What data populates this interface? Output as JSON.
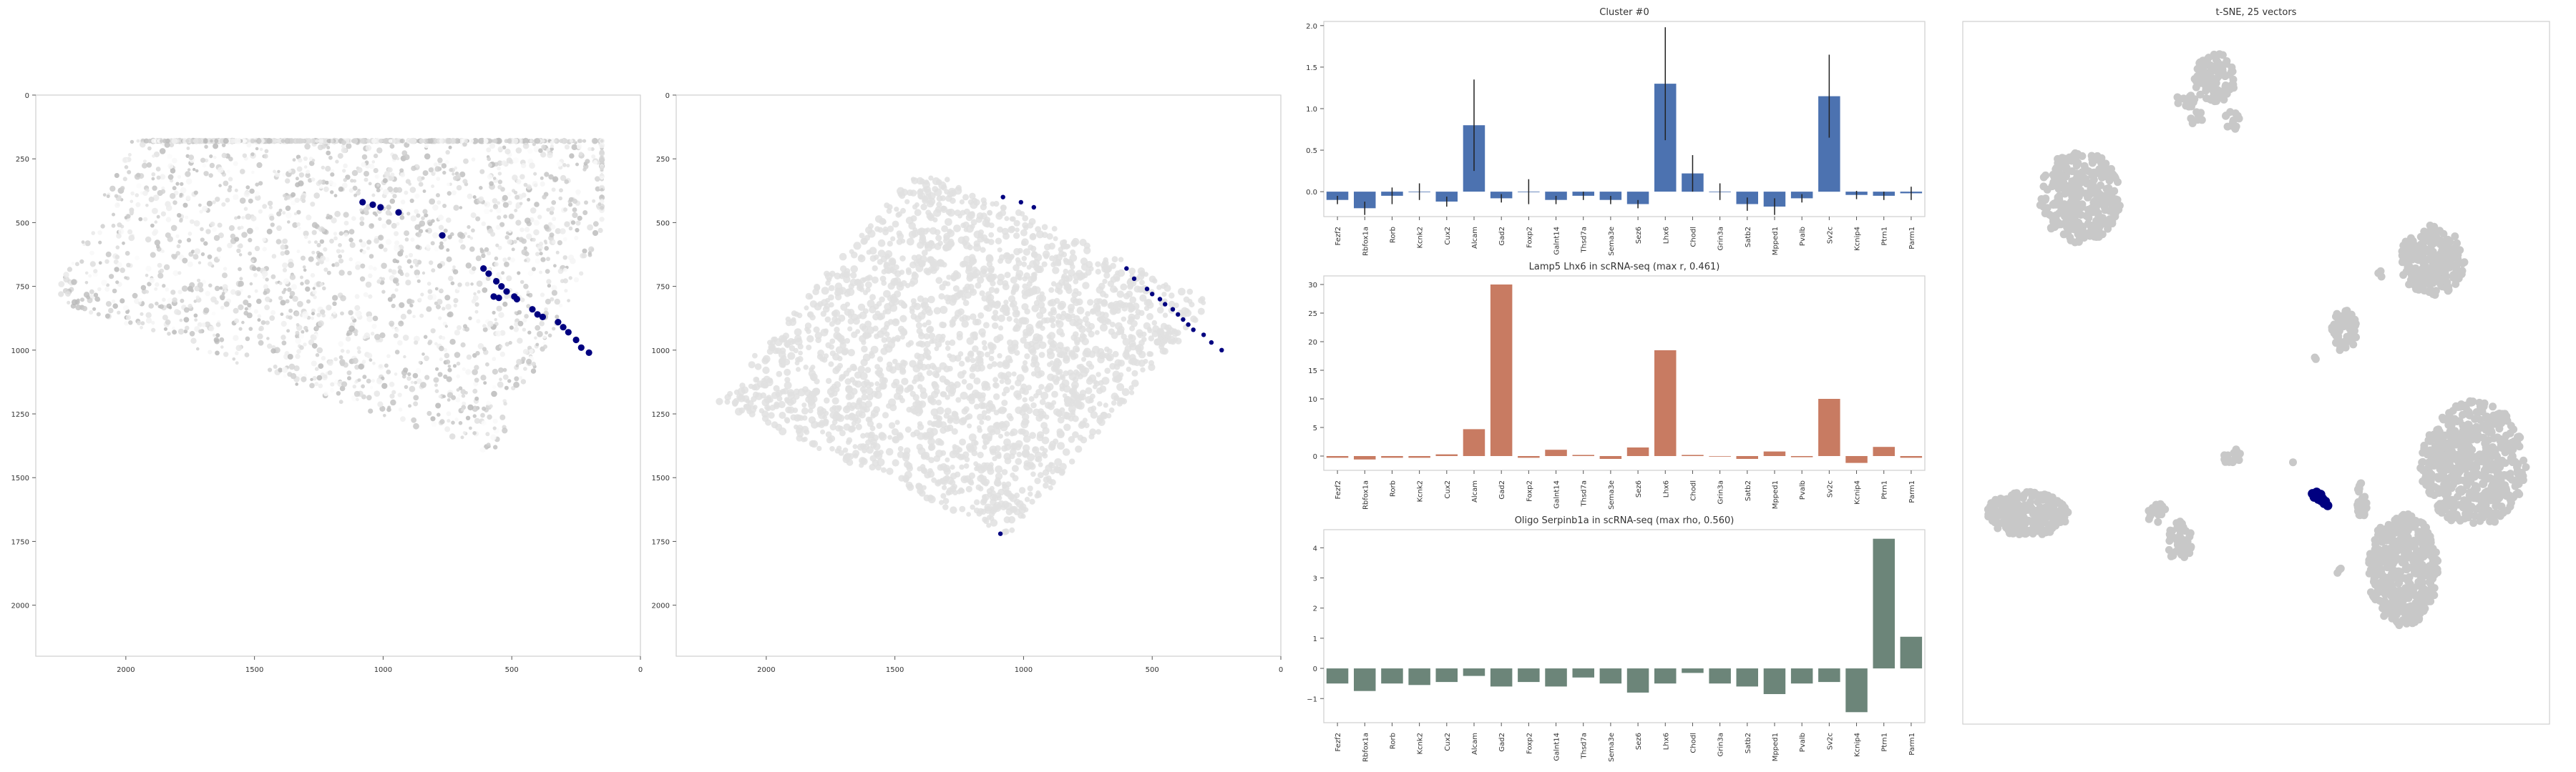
{
  "colors": {
    "highlight": "#000080",
    "scatter_gray": "#c8c8c8",
    "bar_blue": "#4c72b0",
    "bar_orange": "#c87b62",
    "bar_green": "#6c8579",
    "error_bar": "#222222"
  },
  "chart_data": [
    {
      "id": "spatial_1",
      "type": "scatter",
      "title": "",
      "xlim": [
        2350,
        0
      ],
      "ylim": [
        2200,
        0
      ],
      "x_ticks": [
        2000,
        1500,
        1000,
        500,
        0
      ],
      "y_ticks": [
        0,
        250,
        500,
        750,
        1000,
        1250,
        1500,
        1750,
        2000
      ],
      "x_tick_labels": [
        "2000",
        "1500",
        "1000",
        "500",
        "0"
      ],
      "y_tick_labels": [
        "0",
        "250",
        "500",
        "750",
        "1000",
        "1250",
        "1500",
        "1750",
        "2000"
      ],
      "background": "grayscale intensity of all cells",
      "highlighted_points": [
        [
          1080,
          420
        ],
        [
          1040,
          430
        ],
        [
          1010,
          440
        ],
        [
          940,
          460
        ],
        [
          770,
          550
        ],
        [
          610,
          680
        ],
        [
          590,
          700
        ],
        [
          560,
          730
        ],
        [
          540,
          750
        ],
        [
          520,
          770
        ],
        [
          490,
          790
        ],
        [
          480,
          800
        ],
        [
          570,
          790
        ],
        [
          550,
          795
        ],
        [
          420,
          840
        ],
        [
          400,
          860
        ],
        [
          380,
          870
        ],
        [
          320,
          890
        ],
        [
          300,
          910
        ],
        [
          280,
          930
        ],
        [
          250,
          960
        ],
        [
          230,
          990
        ],
        [
          200,
          1010
        ]
      ]
    },
    {
      "id": "spatial_2",
      "type": "scatter",
      "title": "",
      "xlim": [
        2350,
        0
      ],
      "ylim": [
        2200,
        0
      ],
      "x_ticks": [
        2000,
        1500,
        1000,
        500,
        0
      ],
      "y_ticks": [
        0,
        250,
        500,
        750,
        1000,
        1250,
        1500,
        1750,
        2000
      ],
      "x_tick_labels": [
        "2000",
        "1500",
        "1000",
        "500",
        "0"
      ],
      "y_tick_labels": [
        "0",
        "250",
        "500",
        "750",
        "1000",
        "1250",
        "1500",
        "1750",
        "2000"
      ],
      "highlighted_points": [
        [
          1080,
          400
        ],
        [
          1010,
          420
        ],
        [
          960,
          440
        ],
        [
          600,
          680
        ],
        [
          570,
          720
        ],
        [
          520,
          760
        ],
        [
          500,
          780
        ],
        [
          470,
          800
        ],
        [
          450,
          820
        ],
        [
          420,
          840
        ],
        [
          400,
          860
        ],
        [
          380,
          880
        ],
        [
          360,
          900
        ],
        [
          340,
          920
        ],
        [
          300,
          940
        ],
        [
          270,
          970
        ],
        [
          230,
          1000
        ],
        [
          1090,
          1720
        ]
      ]
    },
    {
      "id": "bar_cluster",
      "type": "bar",
      "title": "Cluster #0",
      "categories": [
        "Fezf2",
        "Rbfox1a",
        "Rorb",
        "Kcnk2",
        "Cux2",
        "Alcam",
        "Gad2",
        "Foxp2",
        "Galnt14",
        "Thsd7a",
        "Sema3e",
        "Sez6",
        "Lhx6",
        "Chodl",
        "Grin3a",
        "Satb2",
        "Mpped1",
        "Pvalb",
        "Sv2c",
        "Kcnip4",
        "Ptrn1",
        "Parm1"
      ],
      "values": [
        -0.1,
        -0.2,
        -0.05,
        0,
        -0.12,
        0.8,
        -0.08,
        0,
        -0.1,
        -0.05,
        -0.1,
        -0.15,
        1.3,
        0.22,
        0,
        -0.15,
        -0.18,
        -0.08,
        1.15,
        -0.04,
        -0.05,
        -0.02
      ],
      "errors": [
        0.05,
        0.08,
        0.1,
        0.1,
        0.06,
        0.55,
        0.05,
        0.15,
        0.05,
        0.05,
        0.05,
        0.05,
        0.68,
        0.22,
        0.1,
        0.08,
        0.1,
        0.05,
        0.5,
        0.05,
        0.05,
        0.08
      ],
      "ylim": [
        -0.3,
        2.05
      ],
      "y_ticks": [
        0,
        0.5,
        1,
        1.5,
        2
      ],
      "y_tick_labels": [
        "0.0",
        "0.5",
        "1.0",
        "1.5",
        "2.0"
      ]
    },
    {
      "id": "bar_lamp5",
      "type": "bar",
      "title": "Lamp5 Lhx6 in scRNA-seq (max r, 0.461)",
      "categories": [
        "Fezf2",
        "Rbfox1a",
        "Rorb",
        "Kcnk2",
        "Cux2",
        "Alcam",
        "Gad2",
        "Foxp2",
        "Galnt14",
        "Thsd7a",
        "Sema3e",
        "Sez6",
        "Lhx6",
        "Chodl",
        "Grin3a",
        "Satb2",
        "Mpped1",
        "Pvalb",
        "Sv2c",
        "Kcnip4",
        "Ptrn1",
        "Parm1"
      ],
      "values": [
        -0.3,
        -0.6,
        -0.3,
        -0.3,
        0.3,
        4.7,
        30,
        -0.3,
        1.1,
        0.2,
        -0.5,
        1.5,
        18.5,
        0.2,
        0,
        -0.5,
        0.8,
        -0.2,
        10,
        -1.2,
        1.6,
        -0.3
      ],
      "ylim": [
        -2.5,
        31.5
      ],
      "y_ticks": [
        0,
        5,
        10,
        15,
        20,
        25,
        30
      ],
      "y_tick_labels": [
        "0",
        "5",
        "10",
        "15",
        "20",
        "25",
        "30"
      ]
    },
    {
      "id": "bar_oligo",
      "type": "bar",
      "title": "Oligo Serpinb1a in scRNA-seq (max rho, 0.560)",
      "categories": [
        "Fezf2",
        "Rbfox1a",
        "Rorb",
        "Kcnk2",
        "Cux2",
        "Alcam",
        "Gad2",
        "Foxp2",
        "Galnt14",
        "Thsd7a",
        "Sema3e",
        "Sez6",
        "Lhx6",
        "Chodl",
        "Grin3a",
        "Satb2",
        "Mpped1",
        "Pvalb",
        "Sv2c",
        "Kcnip4",
        "Ptrn1",
        "Parm1"
      ],
      "values": [
        -0.5,
        -0.75,
        -0.5,
        -0.55,
        -0.45,
        -0.25,
        -0.6,
        -0.45,
        -0.6,
        -0.3,
        -0.5,
        -0.8,
        -0.5,
        -0.15,
        -0.5,
        -0.6,
        -0.85,
        -0.5,
        -0.45,
        -1.45,
        4.3,
        1.05
      ],
      "ylim": [
        -1.8,
        4.6
      ],
      "y_ticks": [
        -1,
        0,
        1,
        2,
        3,
        4
      ],
      "y_tick_labels": [
        "−1",
        "0",
        "1",
        "2",
        "3",
        "4"
      ]
    },
    {
      "id": "tsne",
      "type": "scatter",
      "title": "t-SNE, 25 vectors",
      "xlim": [
        0,
        100
      ],
      "ylim": [
        0,
        100
      ],
      "clusters": [
        {
          "cx": 43,
          "cy": 8,
          "rx": 3.5,
          "ry": 3.5,
          "n": 90
        },
        {
          "cx": 38,
          "cy": 11,
          "rx": 1.5,
          "ry": 1.5,
          "n": 15
        },
        {
          "cx": 46,
          "cy": 14,
          "rx": 1.4,
          "ry": 1.4,
          "n": 12
        },
        {
          "cx": 40,
          "cy": 14,
          "rx": 1.2,
          "ry": 1.2,
          "n": 8
        },
        {
          "cx": 20,
          "cy": 25,
          "rx": 7,
          "ry": 6.5,
          "n": 300
        },
        {
          "cx": 80,
          "cy": 34,
          "rx": 5.5,
          "ry": 5,
          "n": 220
        },
        {
          "cx": 71,
          "cy": 36,
          "rx": 0.6,
          "ry": 0.6,
          "n": 3
        },
        {
          "cx": 65,
          "cy": 44,
          "rx": 2.2,
          "ry": 3.2,
          "n": 60
        },
        {
          "cx": 60,
          "cy": 48,
          "rx": 0.5,
          "ry": 0.5,
          "n": 2
        },
        {
          "cx": 87,
          "cy": 63,
          "rx": 9,
          "ry": 9,
          "n": 550
        },
        {
          "cx": 75,
          "cy": 78,
          "rx": 6,
          "ry": 8,
          "n": 420
        },
        {
          "cx": 11,
          "cy": 70,
          "rx": 7,
          "ry": 3.2,
          "n": 230
        },
        {
          "cx": 33,
          "cy": 70,
          "rx": 1.6,
          "ry": 1.5,
          "n": 20
        },
        {
          "cx": 37,
          "cy": 74,
          "rx": 2,
          "ry": 3.5,
          "n": 50
        },
        {
          "cx": 46,
          "cy": 62,
          "rx": 1.5,
          "ry": 1.3,
          "n": 18
        },
        {
          "cx": 68,
          "cy": 68,
          "rx": 1,
          "ry": 2.5,
          "n": 25
        },
        {
          "cx": 64,
          "cy": 78,
          "rx": 0.6,
          "ry": 0.6,
          "n": 3
        },
        {
          "cx": 56,
          "cy": 63,
          "rx": 0.4,
          "ry": 0.4,
          "n": 1
        }
      ],
      "highlighted_points": [
        [
          59.6,
          67.2
        ],
        [
          60.2,
          67.4
        ],
        [
          60.8,
          67.6
        ],
        [
          61.3,
          67.9
        ],
        [
          61.8,
          68.3
        ],
        [
          59.9,
          67.7
        ],
        [
          60.6,
          68.0
        ],
        [
          61.1,
          68.2
        ],
        [
          61.6,
          68.6
        ],
        [
          62.2,
          68.9
        ],
        [
          60.3,
          67.0
        ],
        [
          61.0,
          67.3
        ]
      ]
    }
  ]
}
